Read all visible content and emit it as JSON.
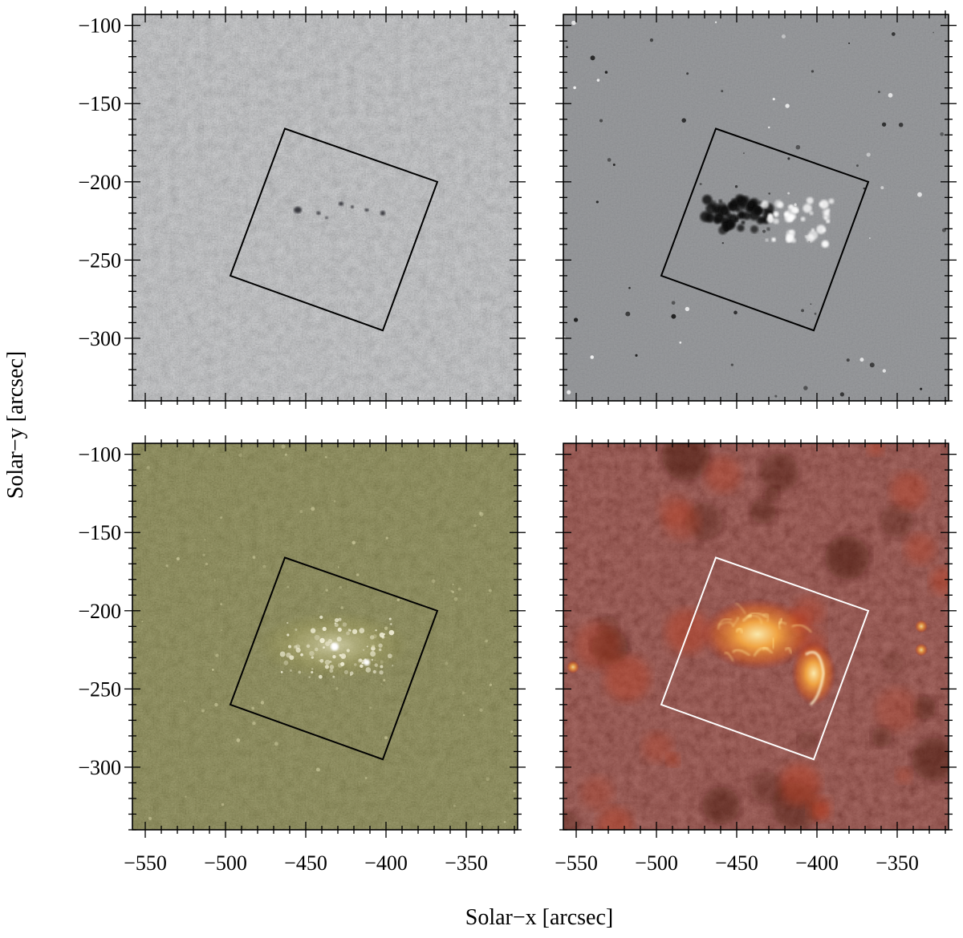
{
  "figure": {
    "xlabel": "Solar−x   [arcsec]",
    "ylabel": "Solar−y   [arcsec]"
  },
  "chart_data": {
    "type": "image-grid",
    "x_axis": {
      "range": [
        -558,
        -318
      ],
      "major_ticks": [
        -550,
        -500,
        -450,
        -400,
        -350
      ],
      "tick_labels": [
        "−550",
        "−500",
        "−450",
        "−400",
        "−350"
      ]
    },
    "y_axis": {
      "range": [
        -340,
        -93
      ],
      "major_ticks": [
        -100,
        -150,
        -200,
        -250,
        -300
      ],
      "tick_labels": [
        "−100",
        "−150",
        "−200",
        "−250",
        "−300"
      ]
    },
    "fov_box": {
      "corners": [
        [
          -463,
          -166
        ],
        [
          -368,
          -200
        ],
        [
          -402,
          -295
        ],
        [
          -497,
          -260
        ]
      ]
    },
    "panels": [
      {
        "id": "top-left",
        "colormap": "grayscale-light",
        "background": "#b7b9bd",
        "box_color": "#000000"
      },
      {
        "id": "top-right",
        "colormap": "grayscale-magnetogram",
        "background": "#8c8e91",
        "box_color": "#000000"
      },
      {
        "id": "bottom-left",
        "colormap": "olive",
        "background": "#6b6a1f",
        "box_color": "#000000"
      },
      {
        "id": "bottom-right",
        "colormap": "red-heat",
        "background": "#7a1208",
        "box_color": "#ffffff"
      }
    ]
  }
}
